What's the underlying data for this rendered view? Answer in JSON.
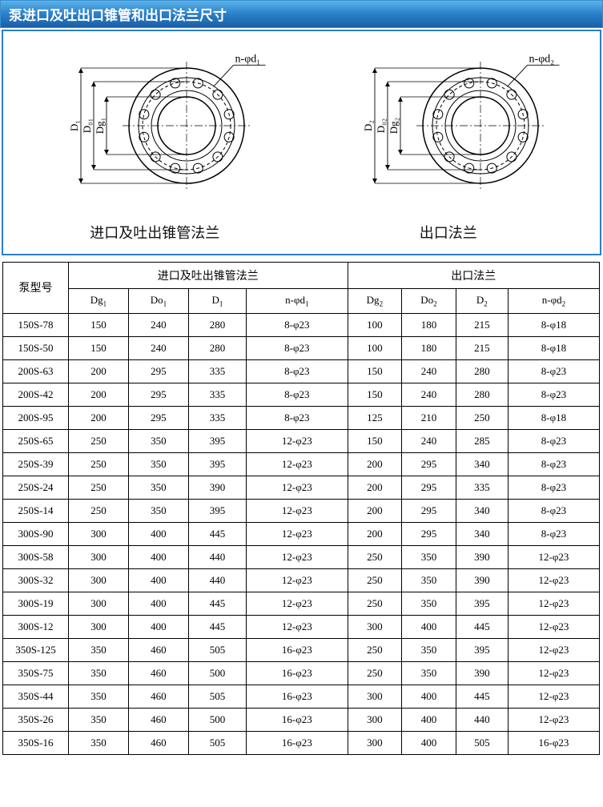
{
  "title": "泵进口及吐出口锥管和出口法兰尺寸",
  "diagrams": {
    "left": {
      "bolt_label": "n-φd₁",
      "dims": [
        "D₁",
        "D₀₁",
        "Dg₁"
      ],
      "caption": "进口及吐出锥管法兰"
    },
    "right": {
      "bolt_label": "n-φd₂",
      "dims": [
        "D₂",
        "D₀₂",
        "Dg₂"
      ],
      "caption": "出口法兰"
    }
  },
  "table": {
    "model_header": "泵型号",
    "group1_header": "进口及吐出锥管法兰",
    "group2_header": "出口法兰",
    "cols_g1": [
      "Dg₁",
      "Do₁",
      "D₁",
      "n-φd₁"
    ],
    "cols_g2": [
      "Dg₂",
      "Do₂",
      "D₂",
      "n-φd₂"
    ],
    "rows": [
      {
        "model": "150S-78",
        "g1": [
          "150",
          "240",
          "280",
          "8-φ23"
        ],
        "g2": [
          "100",
          "180",
          "215",
          "8-φ18"
        ]
      },
      {
        "model": "150S-50",
        "g1": [
          "150",
          "240",
          "280",
          "8-φ23"
        ],
        "g2": [
          "100",
          "180",
          "215",
          "8-φ18"
        ]
      },
      {
        "model": "200S-63",
        "g1": [
          "200",
          "295",
          "335",
          "8-φ23"
        ],
        "g2": [
          "150",
          "240",
          "280",
          "8-φ23"
        ]
      },
      {
        "model": "200S-42",
        "g1": [
          "200",
          "295",
          "335",
          "8-φ23"
        ],
        "g2": [
          "150",
          "240",
          "280",
          "8-φ23"
        ]
      },
      {
        "model": "200S-95",
        "g1": [
          "200",
          "295",
          "335",
          "8-φ23"
        ],
        "g2": [
          "125",
          "210",
          "250",
          "8-φ18"
        ]
      },
      {
        "model": "250S-65",
        "g1": [
          "250",
          "350",
          "395",
          "12-φ23"
        ],
        "g2": [
          "150",
          "240",
          "285",
          "8-φ23"
        ]
      },
      {
        "model": "250S-39",
        "g1": [
          "250",
          "350",
          "395",
          "12-φ23"
        ],
        "g2": [
          "200",
          "295",
          "340",
          "8-φ23"
        ]
      },
      {
        "model": "250S-24",
        "g1": [
          "250",
          "350",
          "390",
          "12-φ23"
        ],
        "g2": [
          "200",
          "295",
          "335",
          "8-φ23"
        ]
      },
      {
        "model": "250S-14",
        "g1": [
          "250",
          "350",
          "395",
          "12-φ23"
        ],
        "g2": [
          "200",
          "295",
          "340",
          "8-φ23"
        ]
      },
      {
        "model": "300S-90",
        "g1": [
          "300",
          "400",
          "445",
          "12-φ23"
        ],
        "g2": [
          "200",
          "295",
          "340",
          "8-φ23"
        ]
      },
      {
        "model": "300S-58",
        "g1": [
          "300",
          "400",
          "440",
          "12-φ23"
        ],
        "g2": [
          "250",
          "350",
          "390",
          "12-φ23"
        ]
      },
      {
        "model": "300S-32",
        "g1": [
          "300",
          "400",
          "440",
          "12-φ23"
        ],
        "g2": [
          "250",
          "350",
          "390",
          "12-φ23"
        ]
      },
      {
        "model": "300S-19",
        "g1": [
          "300",
          "400",
          "445",
          "12-φ23"
        ],
        "g2": [
          "250",
          "350",
          "395",
          "12-φ23"
        ]
      },
      {
        "model": "300S-12",
        "g1": [
          "300",
          "400",
          "445",
          "12-φ23"
        ],
        "g2": [
          "300",
          "400",
          "445",
          "12-φ23"
        ]
      },
      {
        "model": "350S-125",
        "g1": [
          "350",
          "460",
          "505",
          "16-φ23"
        ],
        "g2": [
          "250",
          "350",
          "395",
          "12-φ23"
        ]
      },
      {
        "model": "350S-75",
        "g1": [
          "350",
          "460",
          "500",
          "16-φ23"
        ],
        "g2": [
          "250",
          "350",
          "390",
          "12-φ23"
        ]
      },
      {
        "model": "350S-44",
        "g1": [
          "350",
          "460",
          "505",
          "16-φ23"
        ],
        "g2": [
          "300",
          "400",
          "445",
          "12-φ23"
        ]
      },
      {
        "model": "350S-26",
        "g1": [
          "350",
          "460",
          "500",
          "16-φ23"
        ],
        "g2": [
          "300",
          "400",
          "440",
          "12-φ23"
        ]
      },
      {
        "model": "350S-16",
        "g1": [
          "350",
          "460",
          "505",
          "16-φ23"
        ],
        "g2": [
          "300",
          "400",
          "505",
          "16-φ23"
        ]
      }
    ]
  },
  "style": {
    "flange_stroke": "#000000",
    "bolt_circle_dash": "4,3",
    "bolt_count": 12,
    "outer_r": 72,
    "mid_r": 60,
    "bolt_circle_r": 55,
    "inner_r": 44,
    "bore_r": 36,
    "bolt_hole_r": 6
  }
}
